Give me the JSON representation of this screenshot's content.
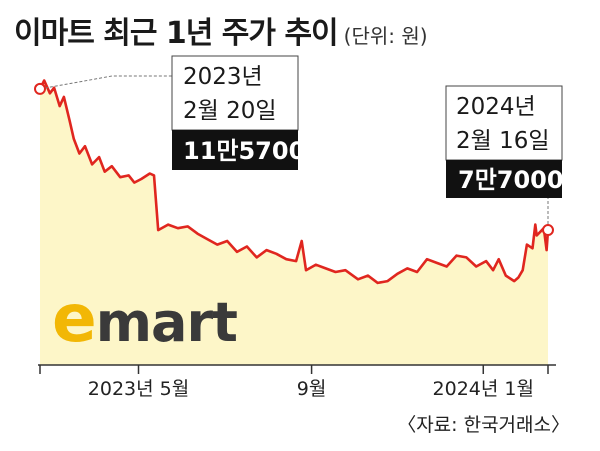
{
  "title": "이마트 최근 1년 주가 추이",
  "unit": "(단위: 원)",
  "source": "〈자료: 한국거래소〉",
  "logo": {
    "e": "e",
    "rest": "mart",
    "colors": {
      "e": "#f2b705",
      "rest": "#3a3a3a"
    }
  },
  "colors": {
    "line": "#e0261f",
    "area": "#fdf6c8",
    "callout_box": "#111111"
  },
  "chart_data": {
    "type": "area",
    "title": "이마트 최근 1년 주가 추이",
    "ylabel": "",
    "xlabel": "",
    "ylim": [
      40000,
      125000
    ],
    "x_ticks": [
      {
        "date": "2023-02-20",
        "label": ""
      },
      {
        "date": "2023-05-01",
        "label": "2023년 5월"
      },
      {
        "date": "2023-09-01",
        "label": "9월"
      },
      {
        "date": "2024-01-01",
        "label": "2024년 1월"
      },
      {
        "date": "2024-02-16",
        "label": ""
      }
    ],
    "series": [
      {
        "points": [
          [
            "2023-02-20",
            115700
          ],
          [
            "2023-02-23",
            118000
          ],
          [
            "2023-02-27",
            114500
          ],
          [
            "2023-03-02",
            116000
          ],
          [
            "2023-03-06",
            111000
          ],
          [
            "2023-03-09",
            113500
          ],
          [
            "2023-03-13",
            107000
          ],
          [
            "2023-03-16",
            102000
          ],
          [
            "2023-03-20",
            98000
          ],
          [
            "2023-03-24",
            100000
          ],
          [
            "2023-03-29",
            95000
          ],
          [
            "2023-04-03",
            97000
          ],
          [
            "2023-04-07",
            93000
          ],
          [
            "2023-04-12",
            94500
          ],
          [
            "2023-04-18",
            91500
          ],
          [
            "2023-04-24",
            92000
          ],
          [
            "2023-04-28",
            90000
          ],
          [
            "2023-05-03",
            91000
          ],
          [
            "2023-05-09",
            92500
          ],
          [
            "2023-05-12",
            92000
          ],
          [
            "2023-05-15",
            77000
          ],
          [
            "2023-05-22",
            78500
          ],
          [
            "2023-05-29",
            77500
          ],
          [
            "2023-06-05",
            78000
          ],
          [
            "2023-06-12",
            76000
          ],
          [
            "2023-06-19",
            74500
          ],
          [
            "2023-06-26",
            73000
          ],
          [
            "2023-07-03",
            74000
          ],
          [
            "2023-07-10",
            71000
          ],
          [
            "2023-07-17",
            72500
          ],
          [
            "2023-07-24",
            69500
          ],
          [
            "2023-07-31",
            71500
          ],
          [
            "2023-08-07",
            70500
          ],
          [
            "2023-08-14",
            69000
          ],
          [
            "2023-08-21",
            68500
          ],
          [
            "2023-08-25",
            74000
          ],
          [
            "2023-08-28",
            66000
          ],
          [
            "2023-09-04",
            67500
          ],
          [
            "2023-09-11",
            66500
          ],
          [
            "2023-09-18",
            65500
          ],
          [
            "2023-09-25",
            66000
          ],
          [
            "2023-10-04",
            63500
          ],
          [
            "2023-10-11",
            64500
          ],
          [
            "2023-10-18",
            62500
          ],
          [
            "2023-10-25",
            63000
          ],
          [
            "2023-11-01",
            65000
          ],
          [
            "2023-11-08",
            66500
          ],
          [
            "2023-11-15",
            65500
          ],
          [
            "2023-11-22",
            69000
          ],
          [
            "2023-11-29",
            68000
          ],
          [
            "2023-12-06",
            67000
          ],
          [
            "2023-12-13",
            70000
          ],
          [
            "2023-12-20",
            69500
          ],
          [
            "2023-12-27",
            67000
          ],
          [
            "2024-01-03",
            68500
          ],
          [
            "2024-01-08",
            66000
          ],
          [
            "2024-01-12",
            69000
          ],
          [
            "2024-01-17",
            64500
          ],
          [
            "2024-01-23",
            63000
          ],
          [
            "2024-01-26",
            64000
          ],
          [
            "2024-01-29",
            66000
          ],
          [
            "2024-02-01",
            73000
          ],
          [
            "2024-02-05",
            72000
          ],
          [
            "2024-02-07",
            78500
          ],
          [
            "2024-02-08",
            75500
          ],
          [
            "2024-02-13",
            77500
          ],
          [
            "2024-02-15",
            71500
          ],
          [
            "2024-02-16",
            77000
          ]
        ]
      }
    ],
    "annotations": [
      {
        "date": "2023-02-20",
        "value": 115700,
        "date_line1": "2023년",
        "date_line2": "2월 20일",
        "value_label": "11만5700"
      },
      {
        "date": "2024-02-16",
        "value": 77000,
        "date_line1": "2024년",
        "date_line2": "2월 16일",
        "value_label": "7만7000"
      }
    ]
  }
}
